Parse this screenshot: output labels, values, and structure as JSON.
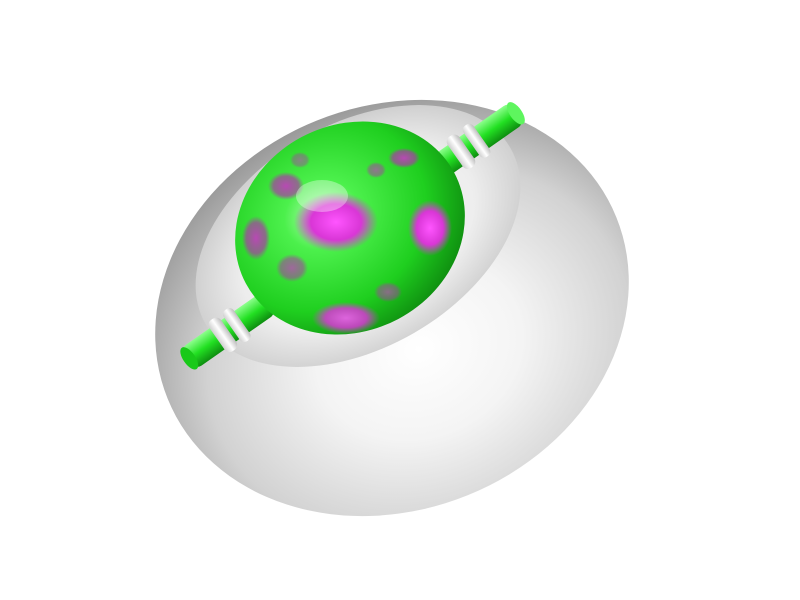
{
  "scene": {
    "background": "#ffffff",
    "shell_color": "#d9d9d9",
    "shell_highlight": "#ffffff",
    "shell_shadow": "#8f8f8f",
    "core_primary_color": "#22e022",
    "core_accent_color": "#e23be0",
    "ring_color": "#f2f2f2",
    "objects": [
      "ellipsoid-shell",
      "green-magenta-core-sphere",
      "upper-right-axle",
      "lower-left-axle"
    ]
  }
}
